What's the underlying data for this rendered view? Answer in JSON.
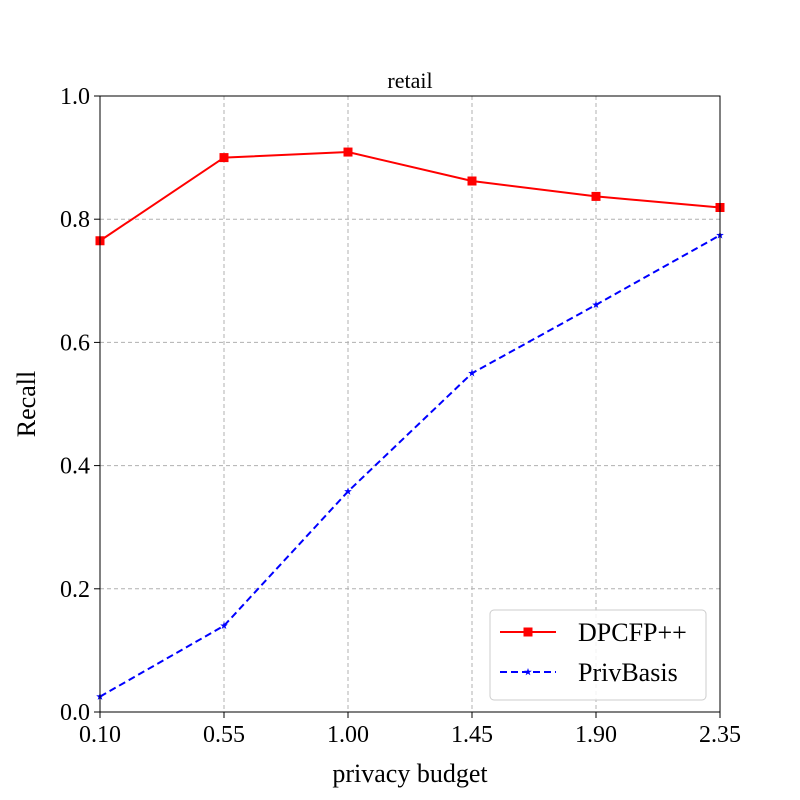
{
  "chart_data": {
    "type": "line",
    "title": "retail",
    "xlabel": "privacy budget",
    "ylabel": "Recall",
    "x": [
      0.1,
      0.55,
      1.0,
      1.45,
      1.9,
      2.35
    ],
    "x_tick_labels": [
      "0.10",
      "0.55",
      "1.00",
      "1.45",
      "1.90",
      "2.35"
    ],
    "y_tick_labels": [
      "0.0",
      "0.2",
      "0.4",
      "0.6",
      "0.8",
      "1.0"
    ],
    "y_ticks": [
      0.0,
      0.2,
      0.4,
      0.6,
      0.8,
      1.0
    ],
    "xlim": [
      0.1,
      2.35
    ],
    "ylim": [
      0.0,
      1.0
    ],
    "grid": true,
    "legend_position": "lower-right",
    "series": [
      {
        "name": "DPCFP++",
        "values": [
          0.765,
          0.9,
          0.909,
          0.862,
          0.837,
          0.819
        ],
        "color": "#ff0000",
        "line_style": "solid",
        "marker": "square"
      },
      {
        "name": "PrivBasis",
        "values": [
          0.025,
          0.14,
          0.358,
          0.55,
          0.661,
          0.774
        ],
        "color": "#0000ff",
        "line_style": "dashed",
        "marker": "star"
      }
    ]
  }
}
